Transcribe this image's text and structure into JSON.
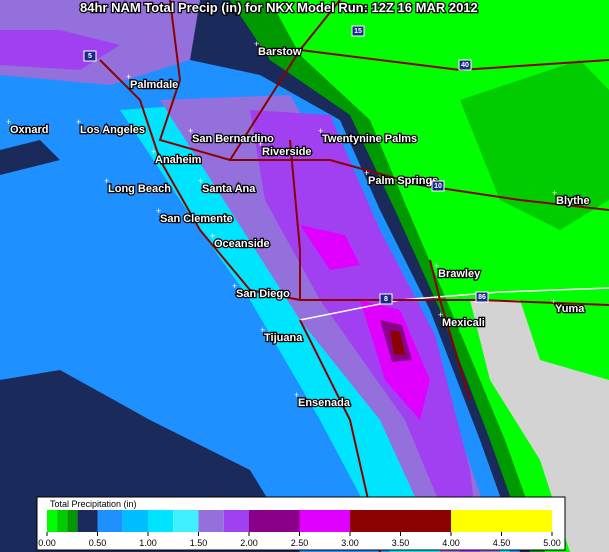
{
  "title": "84hr NAM Total Precip (in) for NKX Model Run: 12Z 16 MAR 2012",
  "cities": [
    "Barstow",
    "Palmdale",
    "Oxnard",
    "Los Angeles",
    "San Bernardino",
    "Twentynine Palms",
    "Riverside",
    "Anaheim",
    "Long Beach",
    "Santa Ana",
    "Palm Springs",
    "Blythe",
    "San Clemente",
    "Oceanside",
    "Brawley",
    "San Diego",
    "Mexicali",
    "Yuma",
    "Tijuana",
    "Ensenada"
  ],
  "highways": [
    "15",
    "40",
    "5",
    "10",
    "8",
    "86"
  ],
  "legend": {
    "title": "Total Precipitation (in)",
    "ticks": [
      {
        "value": 0,
        "label": "0.00"
      },
      {
        "value": 0.5,
        "label": "0.50"
      },
      {
        "value": 1,
        "label": "1.00"
      },
      {
        "value": 1.5,
        "label": "1.50"
      },
      {
        "value": 2,
        "label": "2.00"
      },
      {
        "value": 2.5,
        "label": "2.50"
      },
      {
        "value": 3,
        "label": "3.00"
      },
      {
        "value": 3.5,
        "label": "3.50"
      },
      {
        "value": 4,
        "label": "4.00"
      },
      {
        "value": 4.5,
        "label": "4.50"
      },
      {
        "value": 5,
        "label": "5.00"
      }
    ],
    "bins": [
      0,
      0.1,
      0.2,
      0.3,
      0.5,
      0.75,
      1,
      1.25,
      1.5,
      1.75,
      2,
      2.5,
      3,
      4,
      5
    ],
    "colors": [
      "#00ff00",
      "#00cc00",
      "#009900",
      "#1a2a5a",
      "#1e90ff",
      "#00bfff",
      "#00e5ff",
      "#40f0ff",
      "#9370db",
      "#a040f0",
      "#8b008b",
      "#e000ff",
      "#8b0000",
      "#ffff00"
    ]
  }
}
